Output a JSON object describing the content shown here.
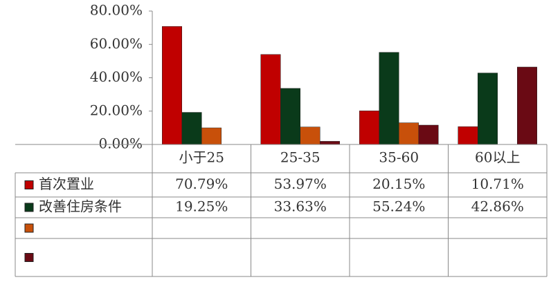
{
  "chart_data": {
    "type": "bar",
    "categories": [
      "小于25",
      "25-35",
      "35-60",
      "60以上"
    ],
    "series": [
      {
        "name": "首次置业",
        "color": "#c00000",
        "values": [
          70.79,
          53.97,
          20.15,
          10.71
        ],
        "value_labels": [
          "70.79%",
          "53.97%",
          "20.15%",
          "10.71%"
        ]
      },
      {
        "name": "改善住房条件",
        "color": "#0a3a1a",
        "values": [
          19.25,
          33.63,
          55.24,
          42.86
        ],
        "value_labels": [
          "19.25%",
          "33.63%",
          "55.24%",
          "42.86%"
        ]
      },
      {
        "color": "#c8500a",
        "values": [
          9.96,
          10.5,
          13.0,
          0
        ]
      },
      {
        "color": "#6a0a14",
        "values": [
          0,
          1.9,
          11.6,
          46.43
        ]
      }
    ],
    "ylim": [
      0,
      80
    ],
    "yticks": [
      {
        "value": 0,
        "label": "0.00%"
      },
      {
        "value": 20,
        "label": "20.00%"
      },
      {
        "value": 40,
        "label": "40.00%"
      },
      {
        "value": 60,
        "label": "60.00%"
      },
      {
        "value": 80,
        "label": "80.00%"
      }
    ]
  }
}
